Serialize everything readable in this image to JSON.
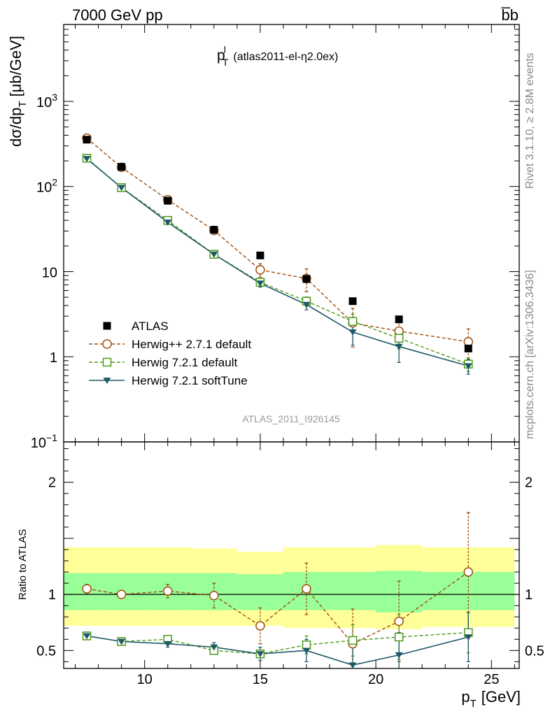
{
  "header": {
    "left": "7000 GeV pp",
    "right": "b̅b"
  },
  "side_text": {
    "rivet": "Rivet 3.1.10, ≥ 2.8M events",
    "source": "mcplots.cern.ch [arXiv:1306.3436]"
  },
  "chart_data": [
    {
      "type": "scatter",
      "title": "p",
      "title_sup": "l",
      "title_sub": "T",
      "title_rest": "(atlas2011-el-η2.0ex)",
      "ylabel": "dσ/dp",
      "ylabel_sub": "T",
      "ylabel_unit": "[μb/GeV]",
      "yscale": "log",
      "ylim": [
        0.1,
        8000
      ],
      "xlim": [
        6.5,
        26.2
      ],
      "ytick_labels": [
        {
          "value": 0.1,
          "base": "10",
          "exp": "−1"
        },
        {
          "value": 1,
          "base": "1",
          "exp": ""
        },
        {
          "value": 10,
          "base": "10",
          "exp": ""
        },
        {
          "value": 100,
          "base": "10",
          "exp": "2"
        },
        {
          "value": 1000,
          "base": "10",
          "exp": "3"
        }
      ],
      "watermark": "ATLAS_2011_I926145",
      "legend_position": "lower-left",
      "series": [
        {
          "name": "ATLAS",
          "marker": "filled-square",
          "color": "#000000",
          "x": [
            7.5,
            9,
            11,
            13,
            15,
            17,
            19,
            21,
            24
          ],
          "y": [
            355,
            170,
            68,
            31,
            15.5,
            8.2,
            4.5,
            2.75,
            1.25
          ]
        },
        {
          "name": "Herwig++ 2.7.1 default",
          "marker": "open-circle",
          "line": "dashed",
          "color": "#a05010",
          "x": [
            7.5,
            9,
            11,
            13,
            15,
            17,
            19,
            21,
            24
          ],
          "y": [
            370,
            168,
            70,
            30.5,
            10.5,
            8.3,
            2.5,
            2.0,
            1.5
          ],
          "err": [
            0.08,
            0.05,
            0.07,
            0.1,
            0.18,
            0.3,
            0.48,
            0.35,
            0.42
          ]
        },
        {
          "name": "Herwig 7.2.1 default",
          "marker": "open-square",
          "line": "dashed",
          "color": "#4c9a1a",
          "x": [
            7.5,
            9,
            11,
            13,
            15,
            17,
            19,
            21,
            24
          ],
          "y": [
            215,
            97,
            40,
            16,
            7.5,
            4.5,
            2.6,
            1.65,
            0.82
          ],
          "err": [
            0.03,
            0.03,
            0.04,
            0.06,
            0.08,
            0.12,
            0.22,
            0.25,
            0.18
          ]
        },
        {
          "name": "Herwig 7.2.1 softTune",
          "marker": "filled-triangle-down",
          "line": "solid",
          "color": "#1e5868",
          "x": [
            7.5,
            9,
            11,
            13,
            15,
            17,
            19,
            21,
            24
          ],
          "y": [
            212,
            97,
            38,
            16,
            7.3,
            4.1,
            1.95,
            1.32,
            0.78
          ],
          "err": [
            0.03,
            0.03,
            0.05,
            0.07,
            0.1,
            0.13,
            0.3,
            0.35,
            0.2
          ]
        }
      ]
    },
    {
      "type": "scatter",
      "ylabel": "Ratio to ATLAS",
      "ylim": [
        0.34,
        2.36
      ],
      "xlim": [
        6.5,
        26.2
      ],
      "yticks": [
        0.5,
        1,
        2
      ],
      "ytick_labels": [
        "0.5",
        "1",
        "2"
      ],
      "xticks": [
        10,
        15,
        20,
        25
      ],
      "xtick_labels": [
        "10",
        "15",
        "20",
        "25"
      ],
      "xlabel": "p",
      "xlabel_sub": "T",
      "xlabel_unit": "[GeV]",
      "reference_line": 1,
      "bands": [
        {
          "lo": 6.5,
          "hi": 8.0,
          "g": [
            0.86,
            1.19
          ],
          "y": [
            0.72,
            1.42
          ]
        },
        {
          "lo": 8.0,
          "hi": 10.0,
          "g": [
            0.86,
            1.19
          ],
          "y": [
            0.72,
            1.42
          ]
        },
        {
          "lo": 10.0,
          "hi": 12.0,
          "g": [
            0.86,
            1.19
          ],
          "y": [
            0.72,
            1.42
          ]
        },
        {
          "lo": 12.0,
          "hi": 14.0,
          "g": [
            0.86,
            1.19
          ],
          "y": [
            0.72,
            1.41
          ]
        },
        {
          "lo": 14.0,
          "hi": 16.0,
          "g": [
            0.86,
            1.18
          ],
          "y": [
            0.72,
            1.38
          ]
        },
        {
          "lo": 16.0,
          "hi": 18.0,
          "g": [
            0.86,
            1.2
          ],
          "y": [
            0.7,
            1.42
          ]
        },
        {
          "lo": 18.0,
          "hi": 20.0,
          "g": [
            0.86,
            1.2
          ],
          "y": [
            0.7,
            1.42
          ]
        },
        {
          "lo": 20.0,
          "hi": 22.0,
          "g": [
            0.84,
            1.21
          ],
          "y": [
            0.69,
            1.44
          ]
        },
        {
          "lo": 22.0,
          "hi": 26.0,
          "g": [
            0.86,
            1.2
          ],
          "y": [
            0.71,
            1.42
          ]
        }
      ],
      "series": [
        {
          "name": "Herwig++ 2.7.1 default",
          "color": "#a05010",
          "marker": "open-circle",
          "line": "dashed",
          "x": [
            7.5,
            9,
            11,
            13,
            15,
            17,
            19,
            21,
            24
          ],
          "y": [
            1.05,
            1.0,
            1.03,
            0.99,
            0.72,
            1.05,
            0.56,
            0.76,
            1.2
          ],
          "err": [
            0.04,
            0.03,
            0.06,
            0.11,
            0.16,
            0.23,
            0.31,
            0.36,
            0.53
          ]
        },
        {
          "name": "Herwig 7.2.1 default",
          "color": "#4c9a1a",
          "marker": "open-square",
          "line": "dashed",
          "x": [
            7.5,
            9,
            11,
            13,
            15,
            17,
            19,
            21,
            24
          ],
          "y": [
            0.63,
            0.58,
            0.6,
            0.5,
            0.47,
            0.55,
            0.59,
            0.62,
            0.66
          ],
          "err": [
            0.01,
            0.01,
            0.02,
            0.03,
            0.03,
            0.08,
            0.14,
            0.2,
            0.18
          ]
        },
        {
          "name": "Herwig 7.2.1 softTune",
          "color": "#1e5868",
          "marker": "filled-triangle-down",
          "line": "solid",
          "x": [
            7.5,
            9,
            11,
            13,
            15,
            17,
            19,
            21,
            24
          ],
          "y": [
            0.63,
            0.58,
            0.56,
            0.53,
            0.47,
            0.5,
            0.37,
            0.46,
            0.62
          ],
          "err": [
            0.01,
            0.01,
            0.03,
            0.04,
            0.06,
            0.1,
            0.18,
            0.2,
            0.22
          ]
        }
      ]
    }
  ]
}
